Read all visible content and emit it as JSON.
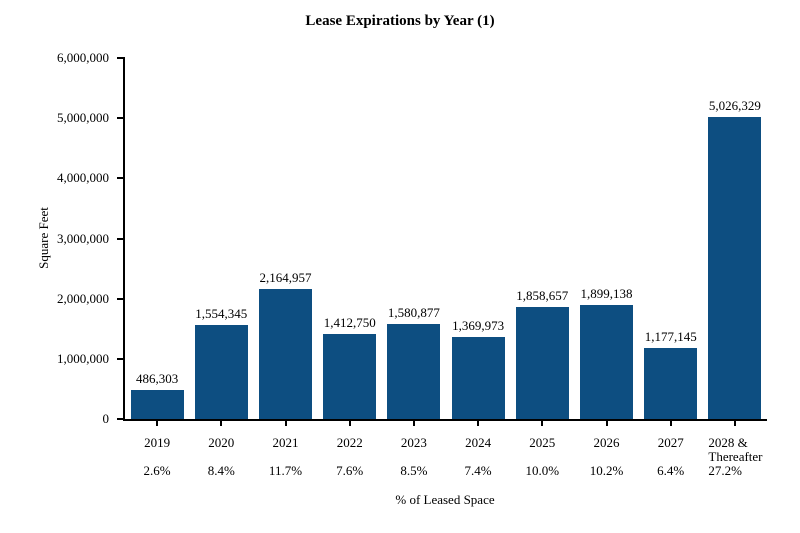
{
  "page": {
    "background": "#ffffff"
  },
  "chart_data": {
    "type": "bar",
    "title": "Lease Expirations by Year (1)",
    "ylabel": "Square Feet",
    "xlabel": "% of Leased Space",
    "categories": [
      "2019",
      "2020",
      "2021",
      "2022",
      "2023",
      "2024",
      "2025",
      "2026",
      "2027",
      "2028 &\nThereafter"
    ],
    "values": [
      486303,
      1554345,
      2164957,
      1412750,
      1580877,
      1369973,
      1858657,
      1899138,
      1177145,
      5026329
    ],
    "value_labels": [
      "486,303",
      "1,554,345",
      "2,164,957",
      "1,412,750",
      "1,580,877",
      "1,369,973",
      "1,858,657",
      "1,899,138",
      "1,177,145",
      "5,026,329"
    ],
    "percent_labels": [
      "2.6%",
      "8.4%",
      "11.7%",
      "7.6%",
      "8.5%",
      "7.4%",
      "10.0%",
      "10.2%",
      "6.4%",
      "27.2%"
    ],
    "ylim": [
      0,
      6000000
    ],
    "yticks": [
      0,
      1000000,
      2000000,
      3000000,
      4000000,
      5000000,
      6000000
    ],
    "ytick_labels": [
      "0",
      "1,000,000",
      "2,000,000",
      "3,000,000",
      "4,000,000",
      "5,000,000",
      "6,000,000"
    ],
    "bar_color": "#0d4e81",
    "axis_color": "#000000",
    "grid": false,
    "legend": "none"
  }
}
